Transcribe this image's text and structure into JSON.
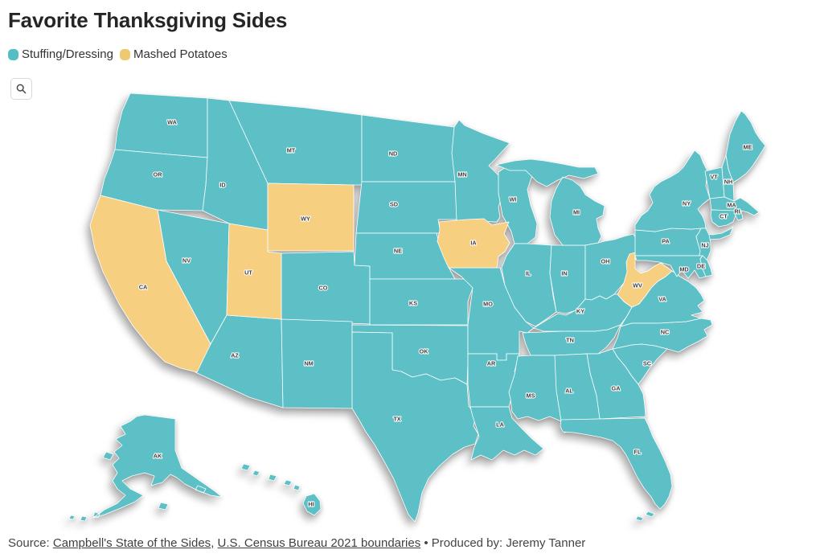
{
  "title": "Favorite Thanksgiving Sides",
  "legend": {
    "items": [
      {
        "label": "Stuffing/Dressing",
        "color": "#54BEC4"
      },
      {
        "label": "Mashed Potatoes",
        "color": "#EFC96F"
      }
    ]
  },
  "icons": {
    "search": "magnifying-glass"
  },
  "map": {
    "colors": {
      "Stuffing/Dressing": "#5CC0C6",
      "Mashed Potatoes": "#F6CF81"
    },
    "border_color": "#ffffff",
    "label_color": "#3d3d3d",
    "states": [
      {
        "abbr": "WA",
        "side": "Stuffing/Dressing"
      },
      {
        "abbr": "OR",
        "side": "Stuffing/Dressing"
      },
      {
        "abbr": "CA",
        "side": "Mashed Potatoes"
      },
      {
        "abbr": "NV",
        "side": "Stuffing/Dressing"
      },
      {
        "abbr": "ID",
        "side": "Stuffing/Dressing"
      },
      {
        "abbr": "MT",
        "side": "Stuffing/Dressing"
      },
      {
        "abbr": "WY",
        "side": "Mashed Potatoes"
      },
      {
        "abbr": "UT",
        "side": "Mashed Potatoes"
      },
      {
        "abbr": "CO",
        "side": "Stuffing/Dressing"
      },
      {
        "abbr": "AZ",
        "side": "Stuffing/Dressing"
      },
      {
        "abbr": "NM",
        "side": "Stuffing/Dressing"
      },
      {
        "abbr": "ND",
        "side": "Stuffing/Dressing"
      },
      {
        "abbr": "SD",
        "side": "Stuffing/Dressing"
      },
      {
        "abbr": "NE",
        "side": "Stuffing/Dressing"
      },
      {
        "abbr": "KS",
        "side": "Stuffing/Dressing"
      },
      {
        "abbr": "OK",
        "side": "Stuffing/Dressing"
      },
      {
        "abbr": "TX",
        "side": "Stuffing/Dressing"
      },
      {
        "abbr": "MN",
        "side": "Stuffing/Dressing"
      },
      {
        "abbr": "IA",
        "side": "Mashed Potatoes"
      },
      {
        "abbr": "MO",
        "side": "Stuffing/Dressing"
      },
      {
        "abbr": "AR",
        "side": "Stuffing/Dressing"
      },
      {
        "abbr": "LA",
        "side": "Stuffing/Dressing"
      },
      {
        "abbr": "WI",
        "side": "Stuffing/Dressing"
      },
      {
        "abbr": "IL",
        "side": "Stuffing/Dressing"
      },
      {
        "abbr": "IN",
        "side": "Stuffing/Dressing"
      },
      {
        "abbr": "MI",
        "side": "Stuffing/Dressing"
      },
      {
        "abbr": "OH",
        "side": "Stuffing/Dressing"
      },
      {
        "abbr": "KY",
        "side": "Stuffing/Dressing"
      },
      {
        "abbr": "TN",
        "side": "Stuffing/Dressing"
      },
      {
        "abbr": "WV",
        "side": "Mashed Potatoes"
      },
      {
        "abbr": "VA",
        "side": "Stuffing/Dressing"
      },
      {
        "abbr": "NC",
        "side": "Stuffing/Dressing"
      },
      {
        "abbr": "SC",
        "side": "Stuffing/Dressing"
      },
      {
        "abbr": "GA",
        "side": "Stuffing/Dressing"
      },
      {
        "abbr": "AL",
        "side": "Stuffing/Dressing"
      },
      {
        "abbr": "MS",
        "side": "Stuffing/Dressing"
      },
      {
        "abbr": "FL",
        "side": "Stuffing/Dressing"
      },
      {
        "abbr": "PA",
        "side": "Stuffing/Dressing"
      },
      {
        "abbr": "NY",
        "side": "Stuffing/Dressing"
      },
      {
        "abbr": "NJ",
        "side": "Stuffing/Dressing"
      },
      {
        "abbr": "MD",
        "side": "Stuffing/Dressing"
      },
      {
        "abbr": "DE",
        "side": "Stuffing/Dressing"
      },
      {
        "abbr": "VT",
        "side": "Stuffing/Dressing"
      },
      {
        "abbr": "NH",
        "side": "Stuffing/Dressing"
      },
      {
        "abbr": "ME",
        "side": "Stuffing/Dressing"
      },
      {
        "abbr": "MA",
        "side": "Stuffing/Dressing"
      },
      {
        "abbr": "RI",
        "side": "Stuffing/Dressing"
      },
      {
        "abbr": "CT",
        "side": "Stuffing/Dressing"
      },
      {
        "abbr": "AK",
        "side": "Stuffing/Dressing"
      },
      {
        "abbr": "HI",
        "side": "Stuffing/Dressing"
      }
    ]
  },
  "footer": {
    "prefix": "Source: ",
    "link1": "Campbell's State of the Sides",
    "separator": ", ",
    "link2": "U.S. Census Bureau 2021 boundaries",
    "produced": " • Produced by: Jeremy Tanner"
  }
}
